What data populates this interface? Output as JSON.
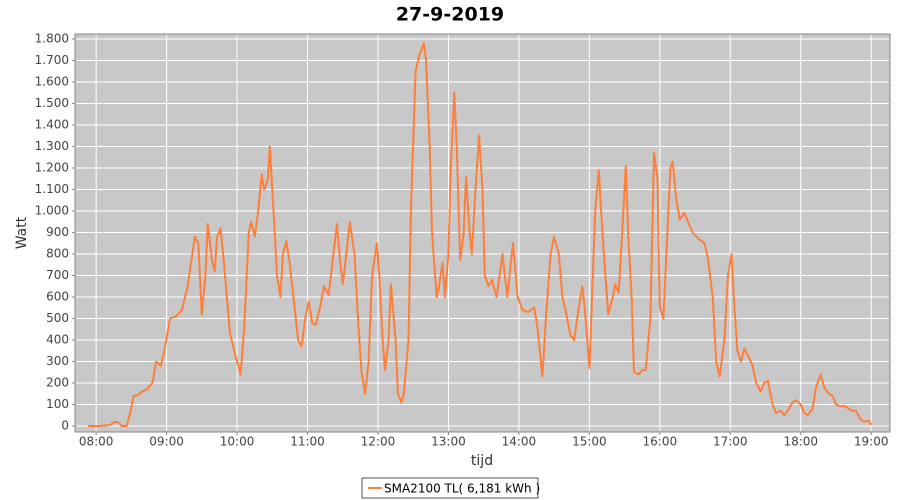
{
  "chart_data": {
    "type": "line",
    "title": "27-9-2019",
    "x_label": "tijd",
    "y_label": "Watt",
    "x": [
      "07:53",
      "08:03",
      "08:12",
      "08:16",
      "08:19",
      "08:22",
      "08:26",
      "08:29",
      "08:32",
      "08:36",
      "08:39",
      "08:43",
      "08:48",
      "08:51",
      "08:55",
      "08:58",
      "09:03",
      "09:08",
      "09:13",
      "09:18",
      "09:24",
      "09:27",
      "09:30",
      "09:33",
      "09:35",
      "09:39",
      "09:41",
      "09:43",
      "09:46",
      "09:49",
      "09:54",
      "09:59",
      "10:03",
      "10:06",
      "10:10",
      "10:12",
      "10:15",
      "10:18",
      "10:21",
      "10:23",
      "10:26",
      "10:28",
      "10:31",
      "10:34",
      "10:37",
      "10:39",
      "10:42",
      "10:45",
      "10:49",
      "10:52",
      "10:55",
      "10:58",
      "11:01",
      "11:04",
      "11:07",
      "11:11",
      "11:14",
      "11:18",
      "11:21",
      "11:25",
      "11:28",
      "11:30",
      "11:33",
      "11:36",
      "11:40",
      "11:43",
      "11:46",
      "11:49",
      "11:52",
      "11:55",
      "11:59",
      "12:01",
      "12:04",
      "12:06",
      "12:09",
      "12:11",
      "12:15",
      "12:17",
      "12:20",
      "12:22",
      "12:26",
      "12:28",
      "12:32",
      "12:35",
      "12:39",
      "12:41",
      "12:44",
      "12:46",
      "12:50",
      "12:52",
      "12:55",
      "12:57",
      "13:00",
      "13:02",
      "13:05",
      "13:07",
      "13:10",
      "13:13",
      "13:15",
      "13:18",
      "13:20",
      "13:23",
      "13:26",
      "13:29",
      "13:31",
      "13:34",
      "13:37",
      "13:41",
      "13:46",
      "13:50",
      "13:55",
      "13:59",
      "14:03",
      "14:08",
      "14:13",
      "14:16",
      "14:20",
      "14:23",
      "14:27",
      "14:30",
      "14:34",
      "14:37",
      "14:40",
      "14:44",
      "14:47",
      "14:51",
      "14:54",
      "14:56",
      "15:00",
      "15:02",
      "15:05",
      "15:08",
      "15:10",
      "15:13",
      "15:16",
      "15:20",
      "15:22",
      "15:25",
      "15:28",
      "15:31",
      "15:33",
      "15:36",
      "15:38",
      "15:42",
      "15:45",
      "15:48",
      "15:52",
      "15:55",
      "15:58",
      "16:00",
      "16:03",
      "16:06",
      "16:09",
      "16:11",
      "16:14",
      "16:17",
      "16:21",
      "16:24",
      "16:28",
      "16:33",
      "16:38",
      "16:41",
      "16:45",
      "16:48",
      "16:51",
      "16:55",
      "16:58",
      "17:01",
      "17:03",
      "17:06",
      "17:09",
      "17:12",
      "17:15",
      "17:19",
      "17:22",
      "17:26",
      "17:29",
      "17:32",
      "17:36",
      "17:39",
      "17:43",
      "17:46",
      "17:49",
      "17:53",
      "17:56",
      "18:00",
      "18:03",
      "18:06",
      "18:10",
      "18:13",
      "18:17",
      "18:20",
      "18:24",
      "18:27",
      "18:30",
      "18:34",
      "18:37",
      "18:41",
      "18:44",
      "18:47",
      "18:51",
      "18:54",
      "18:58",
      "19:00"
    ],
    "series": [
      {
        "name": "SMA2100 TL( 6,181 kWh )",
        "color": "#ff7f3a",
        "values": [
          0,
          0,
          5,
          20,
          15,
          0,
          0,
          60,
          140,
          145,
          160,
          170,
          200,
          300,
          280,
          350,
          500,
          510,
          540,
          650,
          880,
          850,
          520,
          700,
          940,
          760,
          720,
          880,
          920,
          750,
          430,
          320,
          240,
          450,
          900,
          950,
          880,
          1000,
          1170,
          1100,
          1140,
          1300,
          1000,
          700,
          600,
          800,
          860,
          750,
          550,
          400,
          370,
          500,
          580,
          480,
          470,
          560,
          650,
          610,
          750,
          940,
          750,
          660,
          800,
          950,
          800,
          500,
          250,
          150,
          300,
          700,
          850,
          700,
          400,
          260,
          400,
          660,
          400,
          150,
          110,
          150,
          400,
          1000,
          1650,
          1720,
          1780,
          1700,
          1300,
          900,
          600,
          650,
          760,
          600,
          800,
          1200,
          1550,
          1300,
          770,
          900,
          1160,
          900,
          800,
          1100,
          1350,
          1100,
          700,
          650,
          680,
          600,
          800,
          600,
          850,
          600,
          540,
          530,
          550,
          450,
          230,
          500,
          800,
          880,
          800,
          600,
          530,
          420,
          400,
          550,
          650,
          550,
          270,
          550,
          1000,
          1190,
          1000,
          750,
          520,
          600,
          660,
          620,
          900,
          1210,
          900,
          600,
          250,
          240,
          260,
          260,
          500,
          1270,
          1150,
          550,
          500,
          850,
          1200,
          1230,
          1050,
          960,
          990,
          950,
          900,
          870,
          850,
          780,
          600,
          300,
          230,
          400,
          700,
          800,
          600,
          350,
          300,
          360,
          330,
          280,
          200,
          160,
          200,
          210,
          100,
          60,
          70,
          50,
          70,
          110,
          120,
          100,
          60,
          50,
          80,
          180,
          240,
          180,
          150,
          140,
          100,
          90,
          95,
          80,
          70,
          70,
          30,
          20,
          25,
          5
        ]
      }
    ],
    "xlim": [
      "07:42",
      "19:16"
    ],
    "xticks": [
      "08:00",
      "09:00",
      "10:00",
      "11:00",
      "12:00",
      "13:00",
      "14:00",
      "15:00",
      "16:00",
      "17:00",
      "18:00",
      "19:00"
    ],
    "ylim": [
      -28,
      1823
    ],
    "yticks": [
      0,
      100,
      200,
      300,
      400,
      500,
      600,
      700,
      800,
      900,
      {
        "value": 1000,
        "label": "1.000"
      },
      {
        "value": 1100,
        "label": "1.100"
      },
      {
        "value": 1200,
        "label": "1.200"
      },
      {
        "value": 1300,
        "label": "1.300"
      },
      {
        "value": 1400,
        "label": "1.400"
      },
      {
        "value": 1500,
        "label": "1.500"
      },
      {
        "value": 1600,
        "label": "1.600"
      },
      {
        "value": 1700,
        "label": "1.700"
      },
      {
        "value": 1800,
        "label": "1.800"
      }
    ],
    "grid": true,
    "legend": "bottom"
  }
}
